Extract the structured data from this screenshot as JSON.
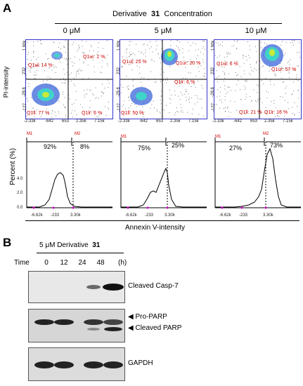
{
  "panel_a": {
    "letter": "A",
    "header": {
      "prefix": "Derivative",
      "compound": "31",
      "suffix": "Concentration"
    },
    "concentrations": [
      "0 μM",
      "5 μM",
      "10 μM"
    ],
    "y_axis_label": "PI-intensity",
    "x_axis_label": "Annexin V-intensity",
    "flow_plots": [
      {
        "concentration": "0 μM",
        "quadrants": {
          "ul": "Q1ul: 14 %",
          "ur": "Q1ur: 2 %",
          "ll": "Q1ll: 77 %",
          "lr": "Q1lr: 6 %"
        },
        "x_ticks": [
          "-2.33k",
          "-642",
          "653",
          "2.35k",
          "7.15k"
        ],
        "y_ticks": [
          "1.90k",
          "232",
          "-28.6",
          "-127"
        ]
      },
      {
        "concentration": "5 μM",
        "quadrants": {
          "ul": "Q1ul: 25 %",
          "ur": "Q1ur: 20 %",
          "ll": "Q1ll: 50 %",
          "lr": "Q1lr: 6 %"
        },
        "x_ticks": [
          "-2.33k",
          "-642",
          "653",
          "2.35k",
          "7.15k"
        ],
        "y_ticks": [
          "1.90k",
          "232",
          "-28.6",
          "-127"
        ]
      },
      {
        "concentration": "10 μM",
        "quadrants": {
          "ul": "Q1ul: 6 %",
          "ur": "Q1ur: 57 %",
          "ll": "Q1ll: 21 %",
          "lr": "Q1lr: 16 %"
        },
        "x_ticks": [
          "-2.33k",
          "-642",
          "653",
          "2.35k",
          "7.15k"
        ],
        "y_ticks": [
          "1.90k",
          "232",
          "-28.6",
          "-127"
        ]
      }
    ],
    "histograms": {
      "y_label": "Percent (%)",
      "y_ticks": [
        "4.0",
        "2.0",
        "0.0"
      ],
      "x_ticks": [
        "-6.62k",
        "-233",
        "3.30k"
      ],
      "markers": [
        "M1",
        "M2"
      ],
      "plots": [
        {
          "m1": "92%",
          "m2": "8%"
        },
        {
          "m1": "75%",
          "m2": "25%"
        },
        {
          "m1": "27%",
          "m2": "73%"
        }
      ]
    }
  },
  "panel_b": {
    "letter": "B",
    "treatment": {
      "prefix": "5 μM Derivative",
      "compound": "31"
    },
    "time_label": "Time",
    "time_unit": "(h)",
    "time_points": [
      "0",
      "12",
      "24",
      "48"
    ],
    "blots": [
      {
        "labels": [
          "Cleaved  Casp-7"
        ],
        "intensities": [
          0.0,
          0.05,
          0.55,
          0.95
        ]
      },
      {
        "labels": [
          "Pro-PARP",
          "Cleaved  PARP"
        ],
        "intensities": [
          0.85,
          0.85,
          0.8,
          0.75
        ]
      },
      {
        "labels": [
          "GAPDH"
        ],
        "intensities": [
          0.85,
          0.85,
          0.85,
          0.85
        ]
      }
    ]
  }
}
